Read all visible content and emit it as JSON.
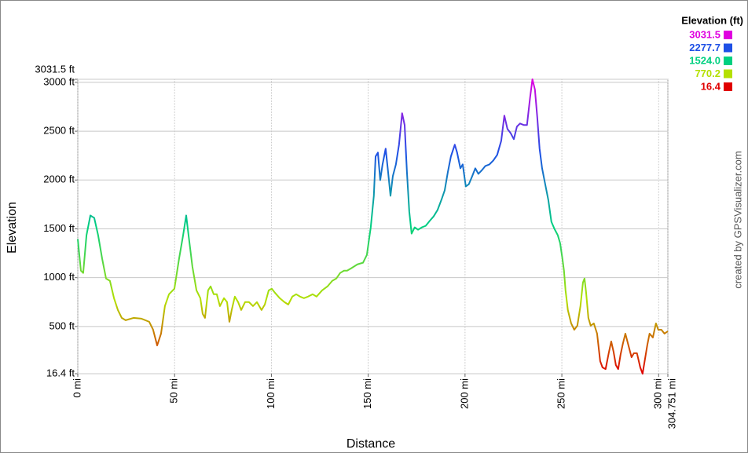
{
  "chart_data": {
    "type": "line",
    "x_label": "Distance",
    "y_label": "Elevation",
    "credit": "created by GPSVisualizer.com",
    "xlim": [
      0,
      304.751
    ],
    "ylim": [
      16.4,
      3031.5
    ],
    "xticks": [
      {
        "value": 0,
        "label": "0 mi"
      },
      {
        "value": 50,
        "label": "50 mi"
      },
      {
        "value": 100,
        "label": "100 mi"
      },
      {
        "value": 150,
        "label": "150 mi"
      },
      {
        "value": 200,
        "label": "200 mi"
      },
      {
        "value": 250,
        "label": "250 mi"
      },
      {
        "value": 300,
        "label": "300 mi"
      },
      {
        "value": 304.751,
        "label": "304.751 mi"
      }
    ],
    "yticks": [
      {
        "value": 16.4,
        "label": "16.4 ft"
      },
      {
        "value": 500,
        "label": "500 ft"
      },
      {
        "value": 1000,
        "label": "1000 ft"
      },
      {
        "value": 1500,
        "label": "1500 ft"
      },
      {
        "value": 2000,
        "label": "2000 ft"
      },
      {
        "value": 2500,
        "label": "2500 ft"
      },
      {
        "value": 3000,
        "label": "3000 ft"
      },
      {
        "value": 3031.5,
        "label": "3031.5 ft"
      }
    ],
    "grid": true,
    "color_scale": {
      "title": "Elevation (ft)",
      "stops": [
        {
          "value": 3031.5,
          "color": "#e000e0"
        },
        {
          "value": 2277.7,
          "color": "#1e50e6"
        },
        {
          "value": 1524,
          "label": "1524.0",
          "color": "#00d080"
        },
        {
          "value": 770.2,
          "color": "#b4e000"
        },
        {
          "value": 16.4,
          "color": "#e00000"
        }
      ]
    },
    "x": [
      0,
      1.6,
      2.8,
      4.5,
      6.5,
      8.5,
      10.5,
      12.6,
      14.6,
      16.6,
      18.7,
      20.7,
      22.7,
      24.7,
      28.8,
      32.9,
      36.9,
      38.9,
      41.0,
      43.0,
      45.0,
      47.1,
      49.9,
      52.3,
      54.4,
      56.0,
      57.2,
      59.2,
      61.3,
      63.3,
      64.5,
      65.7,
      67.3,
      68.6,
      70.2,
      71.8,
      73.4,
      75.5,
      77.1,
      78.3,
      79.5,
      81.1,
      82.8,
      84.4,
      86.4,
      88.4,
      90.5,
      92.5,
      94.9,
      96.6,
      98.6,
      100.2,
      101.8,
      104.3,
      106.7,
      108.7,
      110.8,
      112.8,
      114.8,
      116.8,
      118.9,
      121.3,
      123.3,
      126.2,
      129.0,
      131.4,
      133.5,
      135.5,
      137.5,
      139.1,
      141.2,
      144.4,
      147.3,
      149.3,
      151.3,
      152.9,
      153.8,
      155.0,
      156.2,
      157.4,
      159.0,
      160.2,
      161.5,
      162.7,
      164.3,
      165.9,
      167.5,
      168.8,
      170.0,
      171.2,
      172.4,
      174.0,
      175.7,
      177.7,
      179.7,
      181.7,
      183.8,
      185.8,
      187.8,
      189.5,
      191.1,
      192.7,
      194.7,
      195.9,
      197.6,
      198.8,
      200.4,
      202.0,
      203.7,
      205.3,
      206.9,
      208.5,
      210.5,
      212.6,
      214.6,
      216.6,
      218.7,
      220.3,
      221.9,
      223.5,
      225.2,
      226.8,
      228.4,
      230.4,
      232.0,
      233.6,
      234.8,
      236.1,
      237.3,
      238.5,
      239.8,
      241.4,
      243.0,
      244.6,
      246.2,
      247.9,
      249.1,
      250.3,
      251.1,
      251.9,
      253.1,
      254.8,
      256.4,
      258.0,
      259.6,
      260.9,
      261.7,
      262.5,
      263.7,
      264.9,
      266.5,
      268.2,
      269.8,
      271.0,
      272.6,
      274.2,
      275.5,
      276.7,
      277.9,
      279.1,
      280.3,
      281.5,
      282.8,
      284.4,
      286.0,
      287.2,
      288.8,
      290.5,
      291.7,
      292.9,
      294.1,
      295.3,
      297.0,
      298.6,
      299.8,
      301.4,
      303.0,
      304.751
    ],
    "values": [
      1395,
      1072,
      1048,
      1435,
      1637,
      1612,
      1435,
      1193,
      991,
      967,
      790,
      669,
      588,
      564,
      588,
      580,
      548,
      467,
      306,
      427,
      709,
      830,
      887,
      1193,
      1435,
      1637,
      1435,
      1112,
      870,
      790,
      629,
      588,
      870,
      911,
      830,
      830,
      709,
      790,
      750,
      548,
      669,
      806,
      750,
      669,
      750,
      750,
      709,
      750,
      669,
      725,
      870,
      887,
      846,
      790,
      750,
      725,
      806,
      830,
      806,
      790,
      806,
      830,
      806,
      870,
      911,
      967,
      991,
      1048,
      1072,
      1072,
      1096,
      1136,
      1153,
      1233,
      1515,
      1838,
      2241,
      2281,
      1999,
      2160,
      2321,
      2096,
      1838,
      2039,
      2160,
      2362,
      2684,
      2563,
      2079,
      1677,
      1451,
      1515,
      1491,
      1515,
      1531,
      1580,
      1628,
      1693,
      1797,
      1894,
      2079,
      2241,
      2362,
      2281,
      2120,
      2160,
      1934,
      1958,
      2039,
      2120,
      2063,
      2096,
      2144,
      2160,
      2200,
      2257,
      2402,
      2660,
      2523,
      2482,
      2418,
      2547,
      2579,
      2563,
      2563,
      2845,
      3031.5,
      2926,
      2644,
      2321,
      2120,
      1958,
      1797,
      1572,
      1499,
      1435,
      1354,
      1193,
      1072,
      870,
      669,
      532,
      467,
      508,
      709,
      951,
      991,
      854,
      588,
      508,
      532,
      427,
      145,
      81,
      64,
      226,
      347,
      242,
      105,
      64,
      210,
      322,
      427,
      306,
      185,
      226,
      226,
      81,
      16.4,
      161,
      306,
      427,
      387,
      532,
      467,
      467,
      427,
      451
    ]
  }
}
